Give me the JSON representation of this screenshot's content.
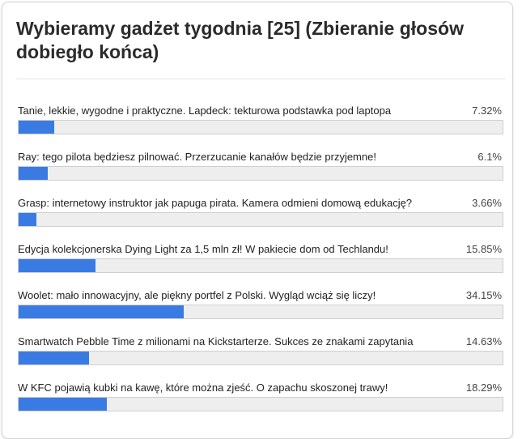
{
  "poll": {
    "title": "Wybieramy gadżet tygodnia [25] (Zbieranie głosów dobiegło końca)",
    "bar_color": "#3a7be3",
    "options": [
      {
        "label": "Tanie, lekkie, wygodne i praktyczne. Lapdeck: tekturowa podstawka pod laptopa",
        "percent_label": "7.32%",
        "percent": 7.32
      },
      {
        "label": "Ray: tego pilota będziesz pilnować. Przerzucanie kanałów będzie przyjemne!",
        "percent_label": "6.1%",
        "percent": 6.1
      },
      {
        "label": "Grasp: internetowy instruktor jak papuga pirata. Kamera odmieni domową edukację?",
        "percent_label": "3.66%",
        "percent": 3.66
      },
      {
        "label": "Edycja kolekcjonerska Dying Light za 1,5 mln zł! W pakiecie dom od Techlandu!",
        "percent_label": "15.85%",
        "percent": 15.85
      },
      {
        "label": "Woolet: mało innowacyjny, ale piękny portfel z Polski. Wygląd wciąż się liczy!",
        "percent_label": "34.15%",
        "percent": 34.15
      },
      {
        "label": "Smartwatch Pebble Time z milionami na Kickstarterze. Sukces ze znakami zapytania",
        "percent_label": "14.63%",
        "percent": 14.63
      },
      {
        "label": "W KFC pojawią kubki na kawę, które można zjeść. O zapachu skoszonej trawy!",
        "percent_label": "18.29%",
        "percent": 18.29
      }
    ]
  }
}
